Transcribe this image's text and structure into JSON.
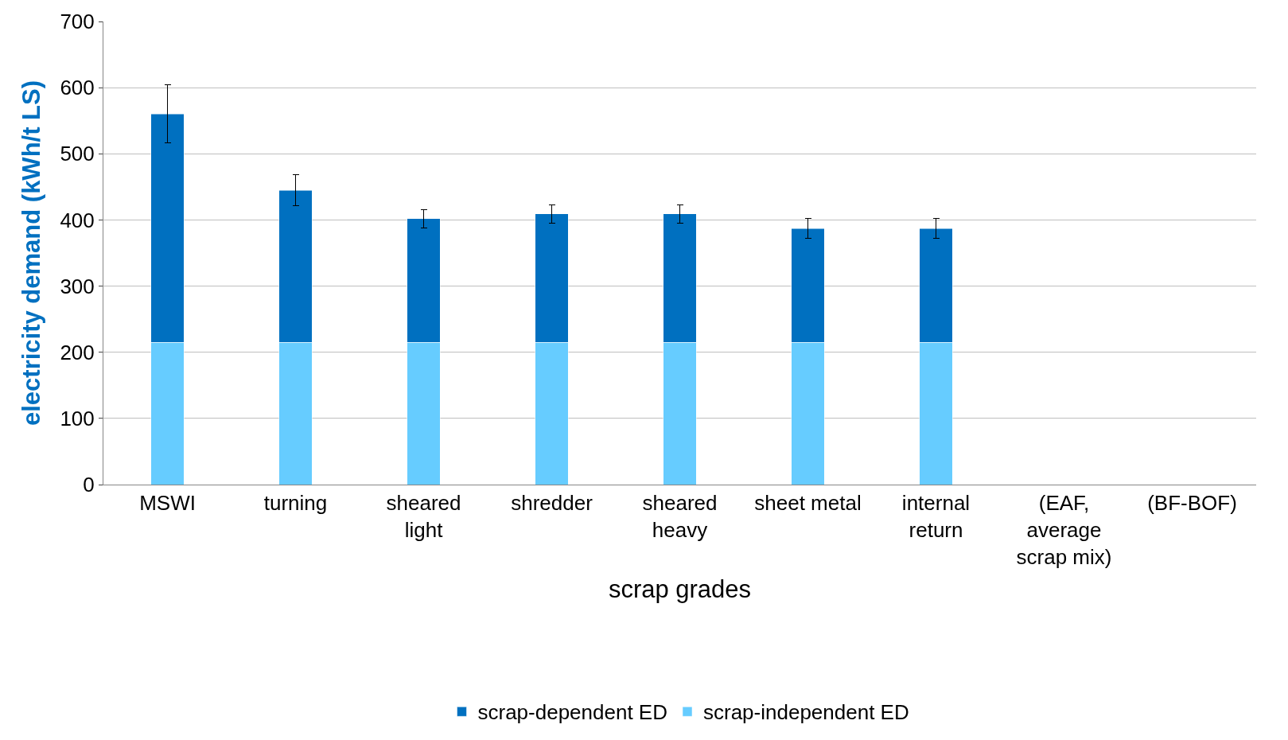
{
  "chart_data": {
    "type": "bar",
    "stacked": true,
    "xlabel": "scrap grades",
    "ylabel": "electricity demand (kWh/t LS)",
    "categories": [
      "MSWI",
      "turning",
      "sheared light",
      "shredder",
      "sheared heavy",
      "sheet metal",
      "internal return",
      "(EAF, average scrap mix)",
      "(BF-BOF)"
    ],
    "series": [
      {
        "name": "scrap-independent ED",
        "color": "#66ccff",
        "values": [
          215,
          215,
          215,
          215,
          215,
          215,
          215,
          null,
          null
        ]
      },
      {
        "name": "scrap-dependent ED",
        "color": "#0070c0",
        "values": [
          345,
          230,
          187,
          194,
          194,
          172,
          172,
          null,
          null
        ],
        "errors": [
          44,
          23,
          14,
          14,
          14,
          15,
          15,
          null,
          null
        ]
      }
    ],
    "ylim": [
      0,
      700
    ],
    "yticks": [
      0,
      100,
      200,
      300,
      400,
      500,
      600,
      700
    ],
    "grid": "y",
    "legend": "bottom"
  }
}
